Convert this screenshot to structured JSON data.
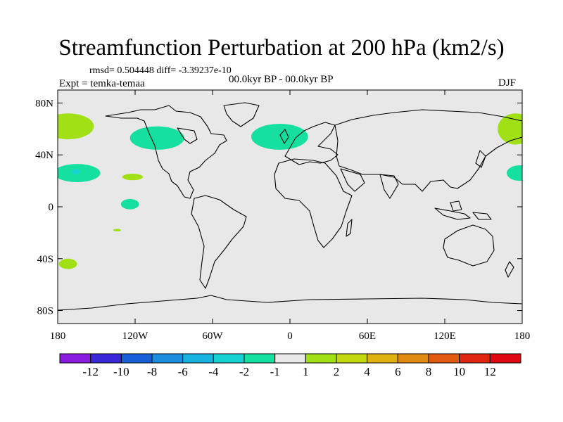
{
  "title": "Streamfunction Perturbation at 200 hPa (km2/s)",
  "stats": "rmsd= 0.504448 diff= -3.39237e-10",
  "experiment": "Expt = temka-temaa",
  "period": "00.0kyr BP - 00.0kyr BP",
  "season": "DJF",
  "chart_data": {
    "type": "map",
    "projection": "cylindrical equidistant",
    "lon_range": [
      -180,
      180
    ],
    "lat_range": [
      -90,
      90
    ],
    "lat_ticks": [
      {
        "value": 80,
        "label": "80N"
      },
      {
        "value": 40,
        "label": "40N"
      },
      {
        "value": 0,
        "label": "0"
      },
      {
        "value": -40,
        "label": "40S"
      },
      {
        "value": -80,
        "label": "80S"
      }
    ],
    "lon_ticks": [
      {
        "value": -180,
        "label": "180"
      },
      {
        "value": -120,
        "label": "120W"
      },
      {
        "value": -60,
        "label": "60W"
      },
      {
        "value": 0,
        "label": "0"
      },
      {
        "value": 60,
        "label": "60E"
      },
      {
        "value": 120,
        "label": "120E"
      },
      {
        "value": 180,
        "label": "180"
      }
    ],
    "colorbar": {
      "labels": [
        "-12",
        "-10",
        "-8",
        "-6",
        "-4",
        "-2",
        "-1",
        "1",
        "2",
        "4",
        "6",
        "8",
        "10",
        "12"
      ],
      "colors": [
        "#8a1ce0",
        "#3a28d8",
        "#1660d8",
        "#1a8fe0",
        "#16b2e0",
        "#16d2d2",
        "#16e0a0",
        "#e8e8e8",
        "#a2e016",
        "#c4d810",
        "#e0b210",
        "#e08a10",
        "#e05a10",
        "#e02810",
        "#e00810"
      ]
    },
    "background_color": "#e8e8e8",
    "anomalies": [
      {
        "lon": -172,
        "lat": 62,
        "rx": 20,
        "ry": 10,
        "color": "#a2e016"
      },
      {
        "lon": 175,
        "lat": 60,
        "rx": 14,
        "ry": 12,
        "color": "#a2e016"
      },
      {
        "lon": -103,
        "lat": 53,
        "rx": 21,
        "ry": 9,
        "color": "#16e0a0"
      },
      {
        "lon": -8,
        "lat": 54,
        "rx": 22,
        "ry": 10,
        "color": "#16e0a0"
      },
      {
        "lon": -165,
        "lat": 26,
        "rx": 18,
        "ry": 7,
        "color": "#16e0a0"
      },
      {
        "lon": -166,
        "lat": 27,
        "rx": 3,
        "ry": 2,
        "color": "#16d2d2"
      },
      {
        "lon": 178,
        "lat": 26,
        "rx": 10,
        "ry": 6,
        "color": "#16e0a0"
      },
      {
        "lon": -122,
        "lat": 23,
        "rx": 8,
        "ry": 2.5,
        "color": "#a2e016"
      },
      {
        "lon": -124,
        "lat": 2,
        "rx": 7,
        "ry": 4,
        "color": "#16e0a0"
      },
      {
        "lon": -134,
        "lat": -18,
        "rx": 3,
        "ry": 1,
        "color": "#a2e016"
      },
      {
        "lon": -172,
        "lat": -44,
        "rx": 7,
        "ry": 4,
        "color": "#a2e016"
      }
    ]
  }
}
